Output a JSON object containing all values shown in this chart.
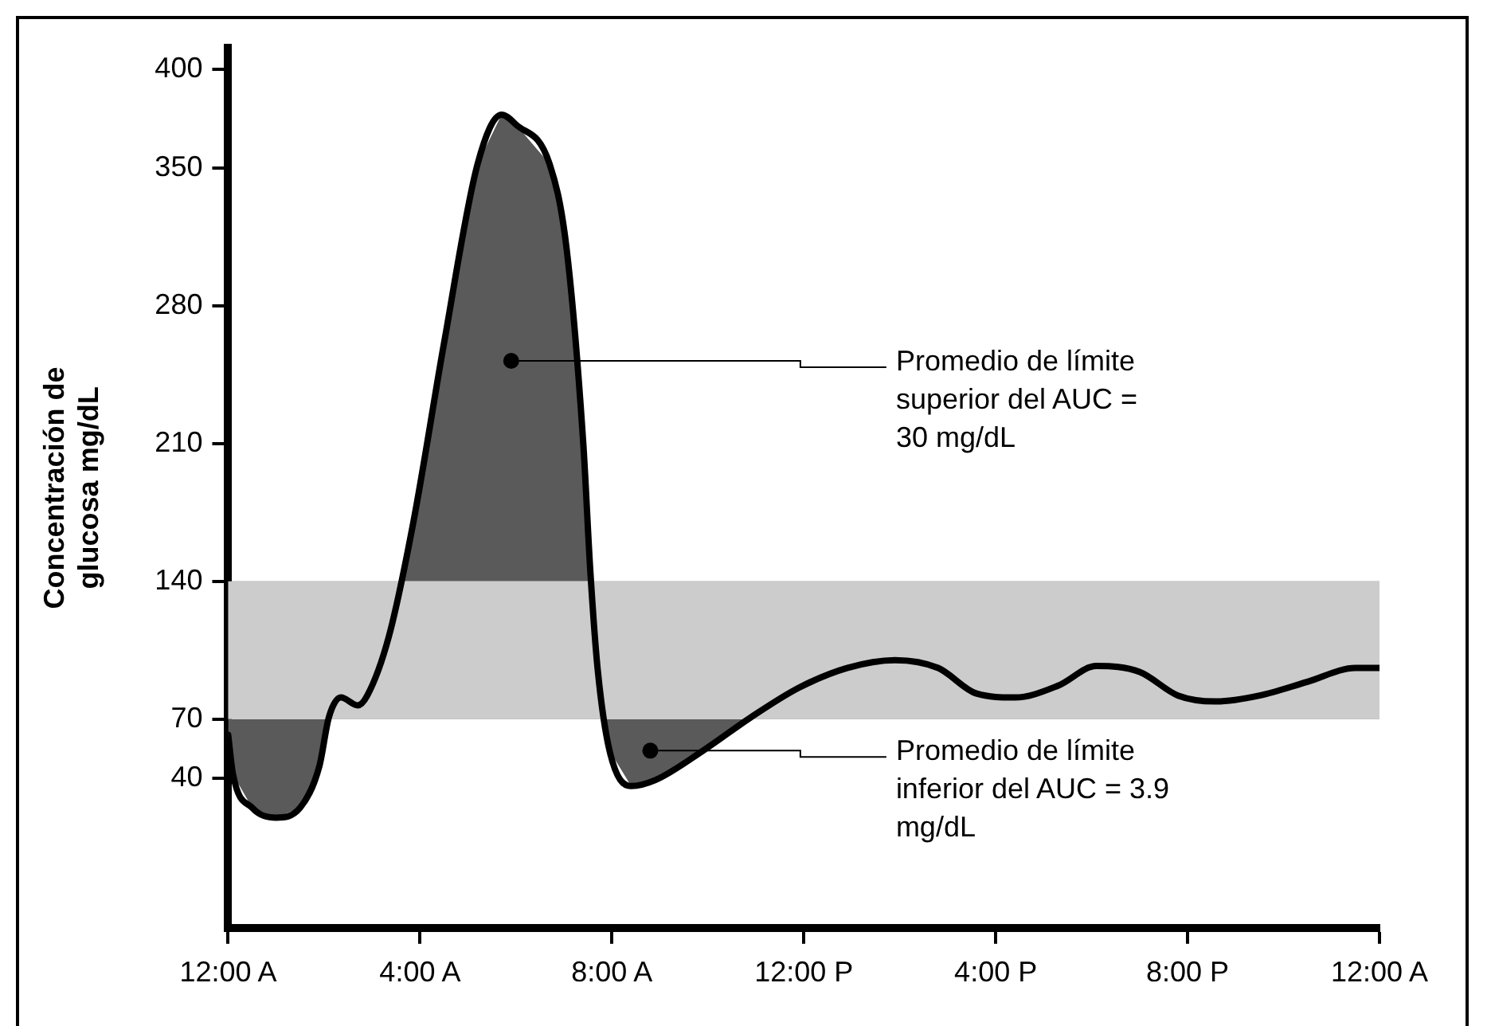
{
  "chart_data": {
    "type": "line",
    "ylabel": "Concentración de glucosa mg/dL",
    "x": [
      0,
      0.1,
      0.5,
      1,
      1.5,
      1.9,
      2.1,
      2.35,
      2.7,
      2.9,
      3.35,
      3.86,
      4.5,
      5.2,
      5.7,
      6.0,
      6.7,
      7.05,
      7.4,
      7.55,
      7.7,
      7.95,
      8.4,
      8.9,
      9.9,
      10.9,
      11.9,
      12.9,
      13.9,
      14.8,
      15.6,
      16.4,
      17.3,
      18.1,
      19,
      19.8,
      20.6,
      21.5,
      22.5,
      23.5,
      24
    ],
    "series": [
      {
        "color": "#000000",
        "values": [
          62,
          42,
          25,
          20,
          25,
          46,
          71,
          81,
          77,
          82,
          112,
          170,
          261,
          352,
          377,
          372,
          352,
          310,
          211,
          145,
          96,
          54,
          36,
          39,
          54,
          71,
          86,
          96,
          100,
          96,
          83,
          81,
          87,
          97,
          94,
          82,
          79,
          82,
          89,
          96,
          96
        ]
      }
    ],
    "xlim": [
      0,
      24
    ],
    "xticks": [
      {
        "value": 0,
        "label": "12:00 A"
      },
      {
        "value": 4,
        "label": "4:00 A"
      },
      {
        "value": 8,
        "label": "8:00 A"
      },
      {
        "value": 12,
        "label": "12:00 P"
      },
      {
        "value": 16,
        "label": "4:00 P"
      },
      {
        "value": 20,
        "label": "8:00 P"
      },
      {
        "value": 24,
        "label": "12:00 A"
      }
    ],
    "ylim": [
      -36,
      411
    ],
    "yticks": [
      40,
      70,
      140,
      210,
      280,
      350,
      400
    ],
    "bands": [
      {
        "axis": "y",
        "from": 70,
        "to": 140,
        "color": "#cccccc"
      }
    ],
    "annotations": [
      {
        "text": "Promedio de límite superior del AUC = 30 mg/dL",
        "x": 5.9,
        "y": 252
      },
      {
        "text": "Promedio de límite inferior del AUC = 3.9 mg/dL",
        "x": 8.8,
        "y": 54
      }
    ],
    "grid": false,
    "legend": false,
    "marker": "none",
    "line_style": "solid"
  }
}
